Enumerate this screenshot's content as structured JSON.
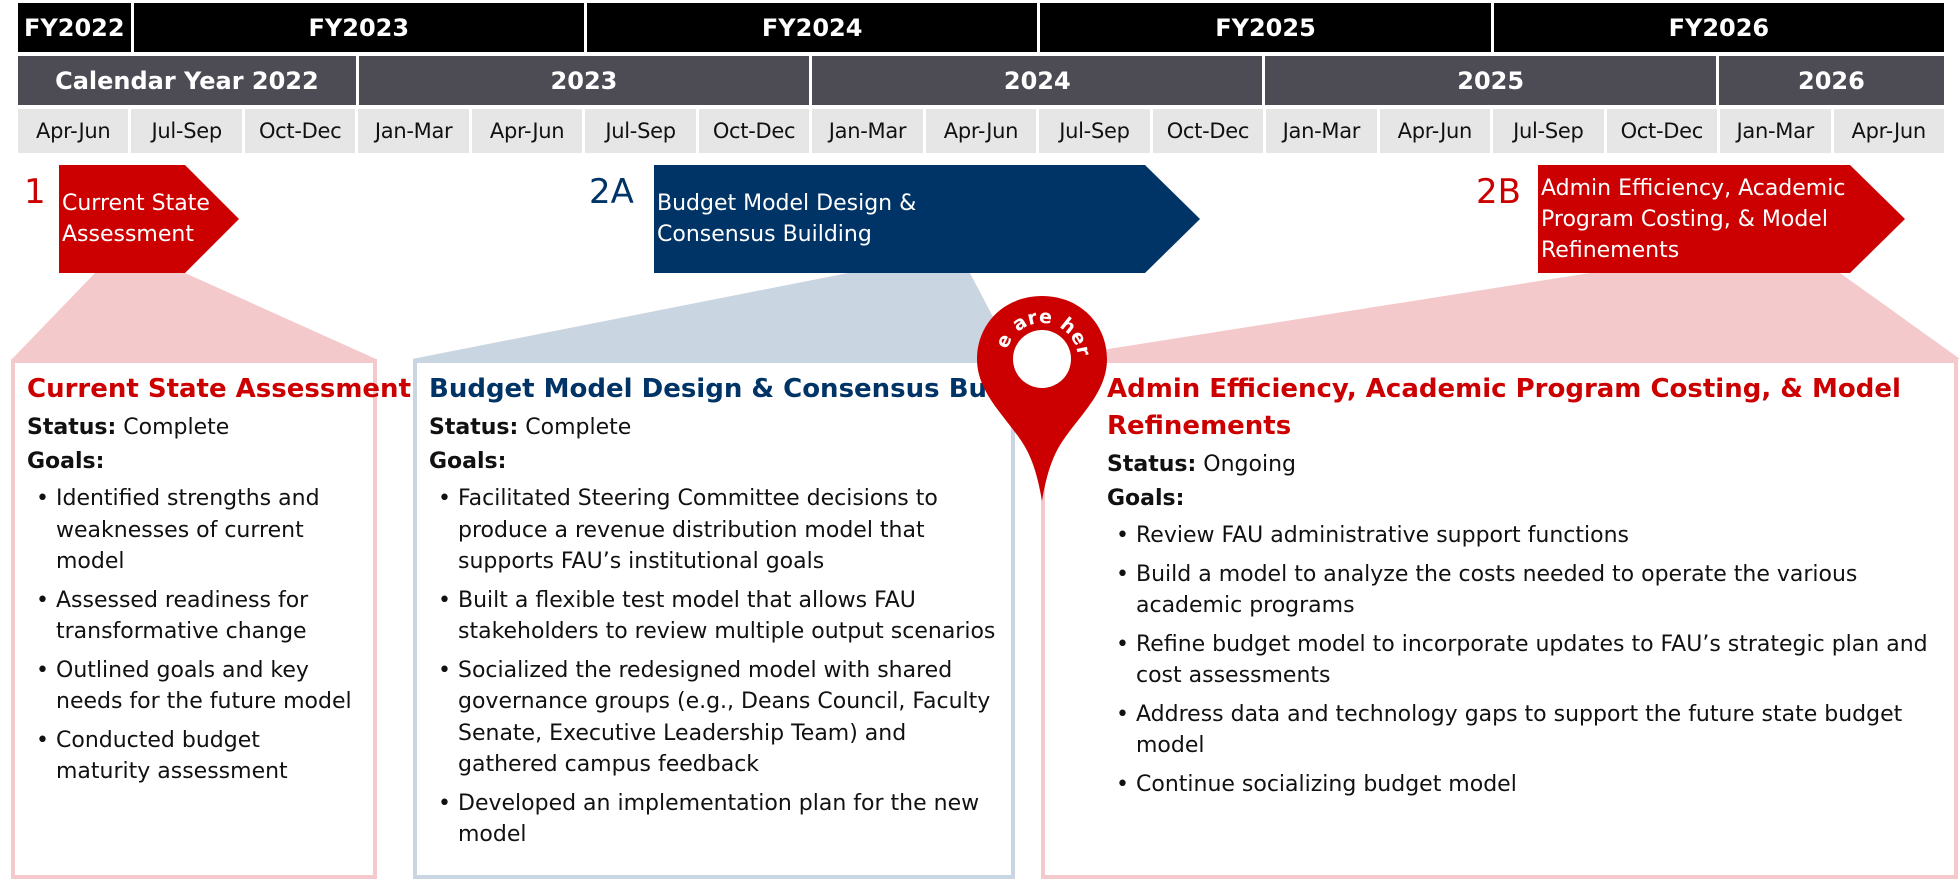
{
  "timeline": {
    "fiscal_years": [
      {
        "label": "FY2022",
        "quarters": 1
      },
      {
        "label": "FY2023",
        "quarters": 4
      },
      {
        "label": "FY2024",
        "quarters": 4
      },
      {
        "label": "FY2025",
        "quarters": 4
      },
      {
        "label": "FY2026",
        "quarters": 4
      }
    ],
    "calendar_years": [
      {
        "label": "Calendar Year 2022",
        "quarters": 3
      },
      {
        "label": "2023",
        "quarters": 4
      },
      {
        "label": "2024",
        "quarters": 4
      },
      {
        "label": "2025",
        "quarters": 4
      },
      {
        "label": "2026",
        "quarters": 2
      }
    ],
    "quarters": [
      "Apr-Jun",
      "Jul-Sep",
      "Oct-Dec",
      "Jan-Mar",
      "Apr-Jun",
      "Jul-Sep",
      "Oct-Dec",
      "Jan-Mar",
      "Apr-Jun",
      "Jul-Sep",
      "Oct-Dec",
      "Jan-Mar",
      "Apr-Jun",
      "Jul-Sep",
      "Oct-Dec",
      "Jan-Mar",
      "Apr-Jun"
    ]
  },
  "colors": {
    "red": "#cc0000",
    "navy": "#003366",
    "red_light": "#f4c9cb",
    "navy_light": "#c9d5e1"
  },
  "marker": {
    "label": "We are here",
    "icon": "location-pin-icon"
  },
  "phases": [
    {
      "number": "1",
      "arrow_text": [
        "Current State",
        "Assessment"
      ],
      "title_lines": [
        "Current State Assessment"
      ],
      "status_label": "Status:",
      "status": "Complete",
      "goals_label": "Goals:",
      "goals": [
        "Identified strengths and weaknesses of current model",
        "Assessed readiness for transformative change",
        "Outlined goals and key needs for the future model",
        "Conducted budget maturity assessment"
      ]
    },
    {
      "number": "2A",
      "arrow_text": [
        "Budget Model Design &",
        "Consensus Building"
      ],
      "title_lines": [
        "Budget Model Design & Consensus Building"
      ],
      "status_label": "Status:",
      "status": "Complete",
      "goals_label": "Goals:",
      "goals": [
        "Facilitated Steering Committee decisions to produce a revenue distribution model that supports FAU’s institutional goals",
        "Built a flexible test model that allows FAU stakeholders to review multiple output scenarios",
        "Socialized the redesigned model with shared governance groups (e.g., Deans Council, Faculty Senate, Executive Leadership Team) and gathered campus feedback",
        "Developed an implementation plan for the new model"
      ]
    },
    {
      "number": "2B",
      "arrow_text": [
        "Admin Efficiency, Academic",
        "Program Costing, & Model",
        "Refinements"
      ],
      "title_lines": [
        "Admin Efficiency,  Academic Program Costing, & Model",
        "Refinements"
      ],
      "status_label": "Status:",
      "status": "Ongoing",
      "goals_label": "Goals:",
      "goals": [
        "Review FAU administrative support functions",
        "Build a model to analyze the costs needed to operate the various academic programs",
        "Refine budget model to incorporate updates to FAU’s strategic plan and cost assessments",
        "Address data and technology gaps to support the future state budget model",
        "Continue socializing budget model"
      ]
    }
  ]
}
